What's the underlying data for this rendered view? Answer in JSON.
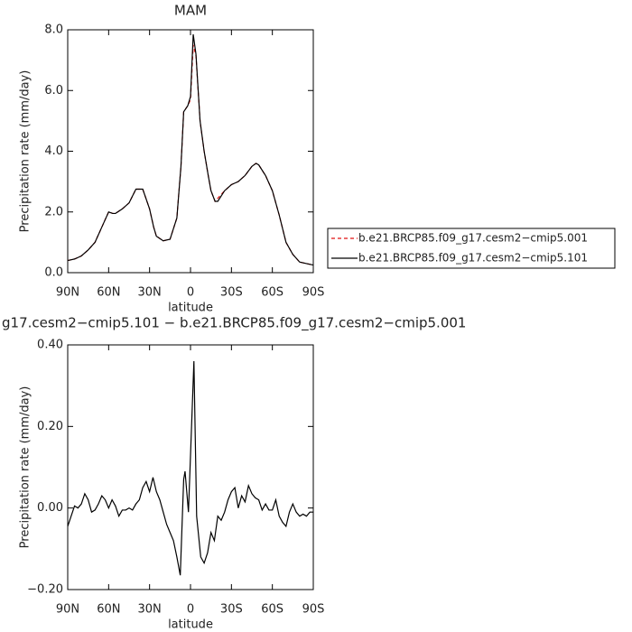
{
  "chart_data": [
    {
      "type": "line",
      "title": "MAM",
      "x_label": "latitude",
      "y_label": "Precipitation rate (mm/day)",
      "x": [
        90,
        85,
        80,
        75,
        70,
        65,
        60,
        57,
        55,
        50,
        45,
        40,
        35,
        30,
        27,
        25,
        20,
        15,
        10,
        7,
        5,
        2,
        0,
        -2,
        -4,
        -7,
        -10,
        -13,
        -15,
        -18,
        -20,
        -25,
        -30,
        -35,
        -40,
        -45,
        -48,
        -50,
        -55,
        -60,
        -65,
        -70,
        -75,
        -80,
        -85,
        -90
      ],
      "series": [
        {
          "name": "b.e21.BRCP85.f09_g17.cesm2−cmip5.001",
          "color": "#e01010",
          "linestyle": "dashed",
          "values": [
            0.4,
            0.45,
            0.55,
            0.75,
            1.0,
            1.5,
            2.0,
            1.95,
            1.95,
            2.1,
            2.3,
            2.75,
            2.75,
            2.1,
            1.5,
            1.2,
            1.05,
            1.1,
            1.8,
            3.5,
            5.3,
            5.5,
            5.7,
            7.5,
            7.15,
            5.0,
            4.0,
            3.2,
            2.7,
            2.35,
            2.45,
            2.7,
            2.9,
            3.0,
            3.2,
            3.5,
            3.6,
            3.55,
            3.2,
            2.7,
            1.9,
            1.0,
            0.6,
            0.35,
            0.3,
            0.25
          ]
        },
        {
          "name": "b.e21.BRCP85.f09_g17.cesm2−cmip5.101",
          "color": "#000000",
          "linestyle": "solid",
          "values": [
            0.4,
            0.45,
            0.55,
            0.75,
            1.0,
            1.5,
            2.0,
            1.95,
            1.95,
            2.1,
            2.3,
            2.75,
            2.75,
            2.1,
            1.5,
            1.2,
            1.05,
            1.1,
            1.8,
            3.5,
            5.3,
            5.5,
            5.8,
            7.85,
            7.2,
            5.0,
            4.0,
            3.2,
            2.7,
            2.35,
            2.35,
            2.7,
            2.9,
            3.0,
            3.2,
            3.5,
            3.6,
            3.55,
            3.2,
            2.7,
            1.9,
            1.0,
            0.6,
            0.35,
            0.3,
            0.25
          ]
        }
      ],
      "xlim": [
        90,
        -90
      ],
      "xticks": [
        {
          "value": 90,
          "label": "90N"
        },
        {
          "value": 60,
          "label": "60N"
        },
        {
          "value": 30,
          "label": "30N"
        },
        0,
        {
          "value": -30,
          "label": "30S"
        },
        {
          "value": -60,
          "label": "60S"
        },
        {
          "value": -90,
          "label": "90S"
        }
      ],
      "ylim": [
        0,
        8
      ],
      "yticks": [
        {
          "value": 0,
          "label": "0.0"
        },
        {
          "value": 2,
          "label": "2.0"
        },
        {
          "value": 4,
          "label": "4.0"
        },
        {
          "value": 6,
          "label": "6.0"
        },
        {
          "value": 8,
          "label": "8.0"
        }
      ],
      "legend": "outside right"
    },
    {
      "type": "line",
      "title": "g17.cesm2−cmip5.101 − b.e21.BRCP85.f09_g17.cesm2−cmip5.001",
      "x_label": "latitude",
      "y_label": "Precipitation rate (mm/day)",
      "x": [
        90,
        87.5,
        85,
        82.5,
        80,
        77.5,
        75,
        72.5,
        70,
        67.5,
        65,
        62.5,
        60,
        57.5,
        55,
        52.5,
        50,
        47.5,
        45,
        42.5,
        40,
        37.5,
        35,
        32.5,
        30,
        27.5,
        25,
        22.5,
        20,
        17.5,
        15,
        12.5,
        10,
        7.5,
        5,
        4,
        1.5,
        -2.5,
        -4.5,
        -7.5,
        -10,
        -12.5,
        -15,
        -17.5,
        -20,
        -22.5,
        -25,
        -27.5,
        -30,
        -32.5,
        -35,
        -37.5,
        -40,
        -42.5,
        -45,
        -47.5,
        -50,
        -52.5,
        -55,
        -57.5,
        -60,
        -62.5,
        -65,
        -67.5,
        -70,
        -72.5,
        -75,
        -77.5,
        -80,
        -82.5,
        -85,
        -87.5,
        -90
      ],
      "series": [
        {
          "color": "#000000",
          "linestyle": "solid",
          "values": [
            -0.045,
            -0.02,
            0.005,
            0.0,
            0.01,
            0.035,
            0.02,
            -0.01,
            -0.005,
            0.01,
            0.03,
            0.02,
            0.0,
            0.02,
            0.005,
            -0.02,
            -0.005,
            -0.005,
            0.0,
            -0.005,
            0.01,
            0.02,
            0.05,
            0.065,
            0.04,
            0.075,
            0.04,
            0.02,
            -0.01,
            -0.04,
            -0.06,
            -0.08,
            -0.12,
            -0.165,
            0.07,
            0.09,
            -0.01,
            0.36,
            -0.02,
            -0.12,
            -0.135,
            -0.11,
            -0.06,
            -0.08,
            -0.02,
            -0.03,
            -0.01,
            0.02,
            0.04,
            0.05,
            0.0,
            0.03,
            0.015,
            0.055,
            0.035,
            0.025,
            0.02,
            -0.005,
            0.01,
            -0.005,
            -0.005,
            0.02,
            -0.02,
            -0.035,
            -0.045,
            -0.01,
            0.01,
            -0.01,
            -0.02,
            -0.015,
            -0.02,
            -0.01,
            -0.01
          ]
        }
      ],
      "xlim": [
        90,
        -90
      ],
      "xticks": [
        {
          "value": 90,
          "label": "90N"
        },
        {
          "value": 60,
          "label": "60N"
        },
        {
          "value": 30,
          "label": "30N"
        },
        0,
        {
          "value": -30,
          "label": "30S"
        },
        {
          "value": -60,
          "label": "60S"
        },
        {
          "value": -90,
          "label": "90S"
        }
      ],
      "ylim": [
        -0.2,
        0.4
      ],
      "yticks": [
        {
          "value": -0.2,
          "label": "−0.20"
        },
        {
          "value": 0,
          "label": "0.00"
        },
        {
          "value": 0.2,
          "label": "0.20"
        },
        {
          "value": 0.4,
          "label": "0.40"
        }
      ]
    }
  ]
}
